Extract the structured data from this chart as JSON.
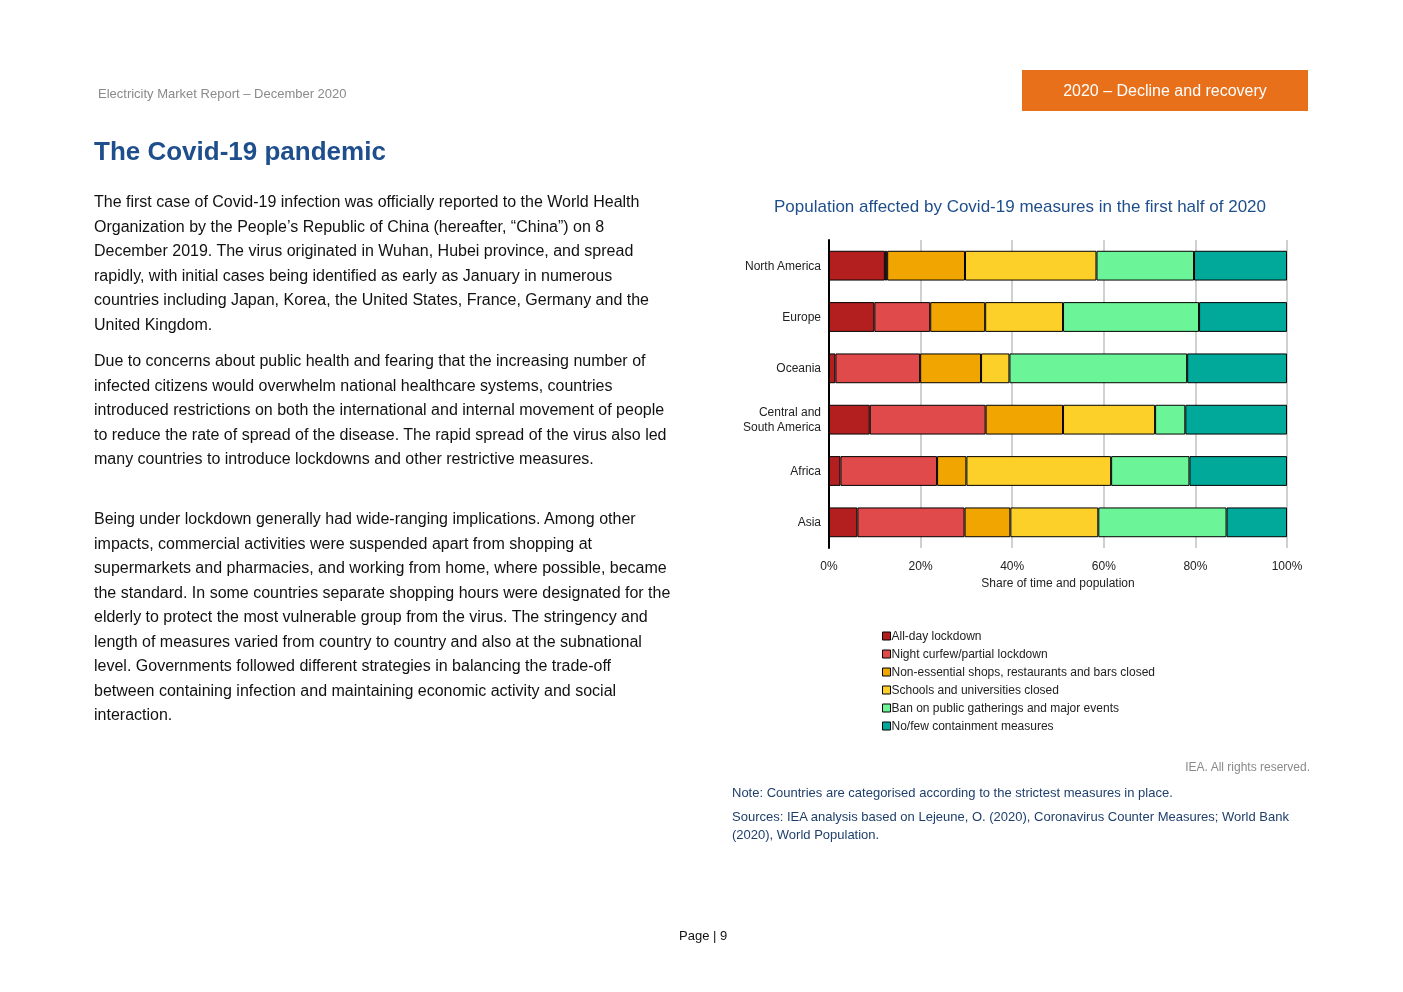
{
  "chart_data": {
    "type": "bar",
    "orientation": "horizontal",
    "stacked": true,
    "title": "Population affected by Covid-19 measures in the first half of 2020",
    "xlabel": "Share of time and population",
    "categories": [
      "North America",
      "Europe",
      "Oceania",
      "Central and\nSouth America",
      "Africa",
      "Asia"
    ],
    "series": [
      {
        "name": "All-day lockdown",
        "color": "#b31f1f",
        "values": [
          12.2,
          9.9,
          1.4,
          8.9,
          2.5,
          6.2
        ]
      },
      {
        "name": "Night curfew/partial lockdown",
        "color": "#e04a4a",
        "values": [
          0.5,
          12.2,
          18.5,
          25.3,
          21.1,
          23.4
        ]
      },
      {
        "name": "Non-essential shops, restaurants and bars closed",
        "color": "#f0a500",
        "values": [
          17.0,
          12.0,
          13.3,
          16.9,
          6.4,
          10.0
        ]
      },
      {
        "name": "Schools and universities closed",
        "color": "#fcd028",
        "values": [
          28.7,
          17.0,
          6.2,
          20.1,
          31.6,
          19.2
        ]
      },
      {
        "name": "Ban on public gatherings and major events",
        "color": "#6cf598",
        "values": [
          21.3,
          29.7,
          38.8,
          6.6,
          17.1,
          28.0
        ]
      },
      {
        "name": "No/few containment measures",
        "color": "#00a99a",
        "values": [
          20.3,
          19.2,
          21.8,
          22.2,
          21.3,
          13.2
        ]
      }
    ],
    "xlim": [
      0,
      100
    ],
    "xticks": [
      {
        "value": 0,
        "label": "0%"
      },
      {
        "value": 20,
        "label": "20%"
      },
      {
        "value": 40,
        "label": "40%"
      },
      {
        "value": 60,
        "label": "60%"
      },
      {
        "value": 80,
        "label": "80%"
      },
      {
        "value": 100,
        "label": "100%"
      }
    ],
    "grid": "x",
    "legend": "bottom",
    "annotations": [
      "Electricity Market Report – December 2020",
      "2020 – Decline and recovery",
      "The Covid-19 pandemic",
      "The first case of Covid-19 infection was officially reported to the World Health Organization by the People’s Republic of China (hereafter, “China”) on 8 December 2019. The virus originated in Wuhan, Hubei province, and spread rapidly, with initial cases being identified as early as January in numerous countries including Japan, Korea, the United States, France, Germany and the United Kingdom.",
      "Due to concerns about public health and fearing that the increasing number of infected citizens would overwhelm national healthcare systems, countries introduced restrictions on both the international and internal movement of people to reduce the rate of spread of the disease. The rapid spread of the virus also led many countries to introduce lockdowns and other restrictive measures.",
      "Being under lockdown generally had wide-ranging implications. Among other impacts, commercial activities were suspended apart from shopping at supermarkets and pharmacies, and working from home, where possible, became the standard. In some countries separate shopping hours were designated for the elderly to protect the most vulnerable group from the virus. The stringency and length of measures varied from country to country and also at the subnational level. Governments followed different strategies in balancing the trade-off between containing infection and maintaining economic activity and social interaction.",
      "IEA. All rights reserved.",
      "Note: Countries are categorised according to the strictest measures in place.",
      "Sources: IEA analysis based on Lejeune, O. (2020), Coronavirus Counter Measures; World Bank (2020), World Population.",
      "Page | 9"
    ]
  }
}
